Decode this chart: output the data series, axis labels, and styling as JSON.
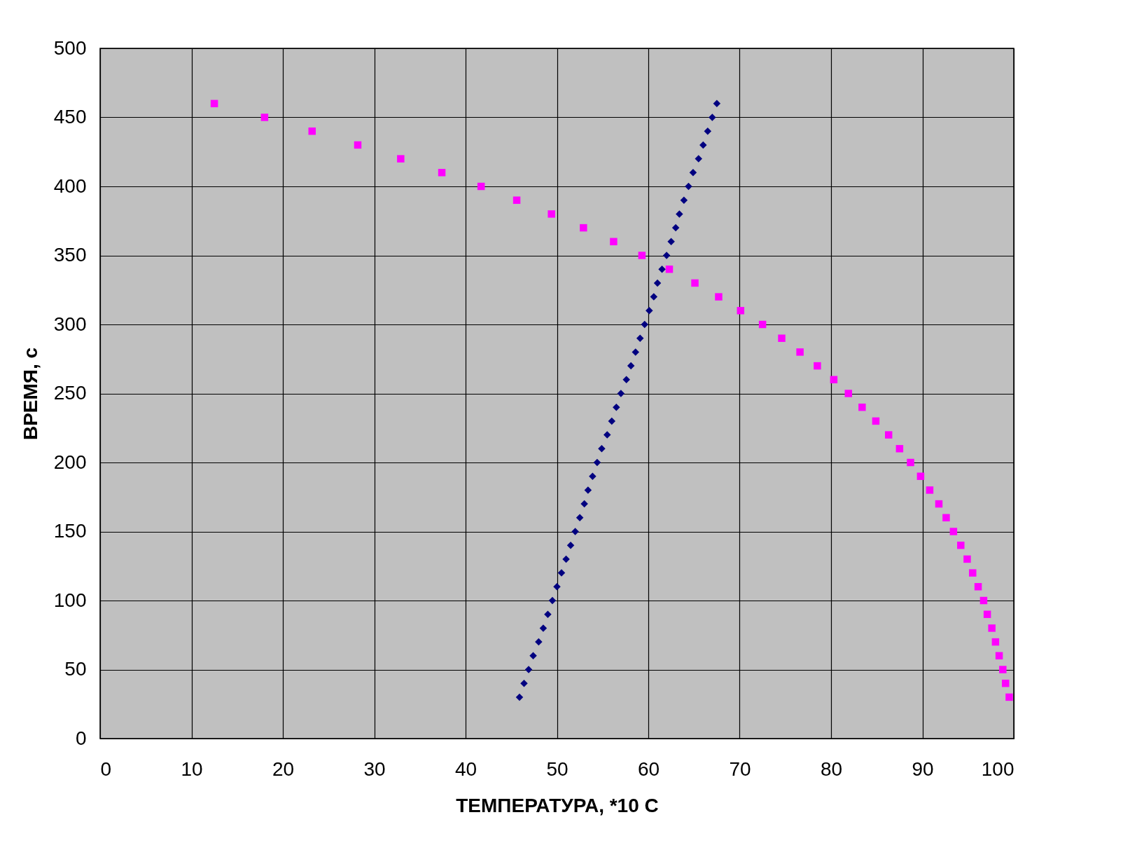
{
  "chart_data": {
    "type": "scatter",
    "xlabel": "ТЕМПЕРАТУРА, *10 С",
    "ylabel": "ВРЕМЯ, с",
    "xlim": [
      0,
      100
    ],
    "xticks": [
      0,
      10,
      20,
      30,
      40,
      50,
      60,
      70,
      80,
      90,
      100
    ],
    "ylim": [
      0,
      500
    ],
    "yticks": [
      0,
      50,
      100,
      150,
      200,
      250,
      300,
      350,
      400,
      450,
      500
    ],
    "grid": true,
    "series": [
      {
        "color": "#ff00ff",
        "marker": "square",
        "x": [
          12.5,
          18.0,
          23.2,
          28.2,
          32.9,
          37.4,
          41.7,
          45.6,
          49.4,
          52.9,
          56.2,
          59.3,
          62.3,
          65.1,
          67.7,
          70.1,
          72.5,
          74.6,
          76.6,
          78.5,
          80.3,
          81.9,
          83.4,
          84.9,
          86.3,
          87.5,
          88.7,
          89.8,
          90.8,
          91.8,
          92.6,
          93.4,
          94.2,
          94.9,
          95.5,
          96.1,
          96.7,
          97.1,
          97.6,
          98.0,
          98.4,
          98.8,
          99.1,
          99.5
        ],
        "values": [
          460,
          450,
          440,
          430,
          420,
          410,
          400,
          390,
          380,
          370,
          360,
          350,
          340,
          330,
          320,
          310,
          300,
          290,
          280,
          270,
          260,
          250,
          240,
          230,
          220,
          210,
          200,
          190,
          180,
          170,
          160,
          150,
          140,
          130,
          120,
          110,
          100,
          90,
          80,
          70,
          60,
          50,
          40,
          30
        ]
      },
      {
        "color": "#000080",
        "marker": "diamond",
        "x": [
          45.9,
          46.4,
          46.9,
          47.4,
          48.0,
          48.5,
          49.0,
          49.5,
          50.0,
          50.5,
          51.0,
          51.5,
          52.0,
          52.5,
          53.0,
          53.4,
          53.9,
          54.4,
          54.9,
          55.5,
          56.0,
          56.5,
          57.0,
          57.6,
          58.1,
          58.6,
          59.1,
          59.6,
          60.1,
          60.6,
          61.0,
          61.5,
          62.0,
          62.5,
          63.0,
          63.4,
          63.9,
          64.4,
          64.9,
          65.5,
          66.0,
          66.5,
          67.0,
          67.5
        ],
        "values": [
          30,
          40,
          50,
          60,
          70,
          80,
          90,
          100,
          110,
          120,
          130,
          140,
          150,
          160,
          170,
          180,
          190,
          200,
          210,
          220,
          230,
          240,
          250,
          260,
          270,
          280,
          290,
          300,
          310,
          320,
          330,
          340,
          350,
          360,
          370,
          380,
          390,
          400,
          410,
          420,
          430,
          440,
          450,
          460
        ]
      }
    ]
  }
}
